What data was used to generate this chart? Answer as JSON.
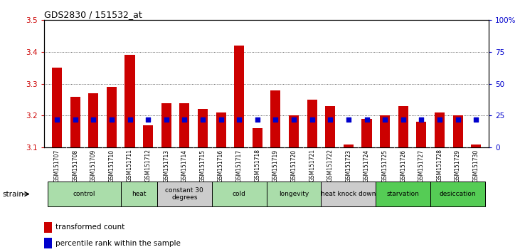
{
  "title": "GDS2830 / 151532_at",
  "samples": [
    "GSM151707",
    "GSM151708",
    "GSM151709",
    "GSM151710",
    "GSM151711",
    "GSM151712",
    "GSM151713",
    "GSM151714",
    "GSM151715",
    "GSM151716",
    "GSM151717",
    "GSM151718",
    "GSM151719",
    "GSM151720",
    "GSM151721",
    "GSM151722",
    "GSM151723",
    "GSM151724",
    "GSM151725",
    "GSM151726",
    "GSM151727",
    "GSM151728",
    "GSM151729",
    "GSM151730"
  ],
  "transformed_count": [
    3.35,
    3.26,
    3.27,
    3.29,
    3.39,
    3.17,
    3.24,
    3.24,
    3.22,
    3.21,
    3.42,
    3.16,
    3.28,
    3.2,
    3.25,
    3.23,
    3.11,
    3.19,
    3.2,
    3.23,
    3.18,
    3.21,
    3.2,
    3.11
  ],
  "percentile_rank": [
    22,
    22,
    22,
    22,
    22,
    22,
    22,
    22,
    22,
    22,
    22,
    22,
    22,
    22,
    22,
    22,
    22,
    22,
    22,
    22,
    22,
    22,
    22,
    22
  ],
  "groups": [
    {
      "label": "control",
      "start": 0,
      "end": 4,
      "color": "#aaddaa"
    },
    {
      "label": "heat",
      "start": 4,
      "end": 6,
      "color": "#aaddaa"
    },
    {
      "label": "constant 30\ndegrees",
      "start": 6,
      "end": 9,
      "color": "#cccccc"
    },
    {
      "label": "cold",
      "start": 9,
      "end": 12,
      "color": "#aaddaa"
    },
    {
      "label": "longevity",
      "start": 12,
      "end": 15,
      "color": "#aaddaa"
    },
    {
      "label": "heat knock down",
      "start": 15,
      "end": 18,
      "color": "#cccccc"
    },
    {
      "label": "starvation",
      "start": 18,
      "end": 21,
      "color": "#55cc55"
    },
    {
      "label": "desiccation",
      "start": 21,
      "end": 24,
      "color": "#55cc55"
    }
  ],
  "ylim_left": [
    3.1,
    3.5
  ],
  "ylim_right": [
    0,
    100
  ],
  "yticks_left": [
    3.1,
    3.2,
    3.3,
    3.4,
    3.5
  ],
  "yticks_right": [
    0,
    25,
    50,
    75,
    100
  ],
  "ytick_labels_right": [
    "0",
    "25",
    "50",
    "75",
    "100%"
  ],
  "bar_color": "#cc0000",
  "dot_color": "#0000cc",
  "bar_baseline": 3.1,
  "bar_width": 0.55,
  "dot_size": 18,
  "background_color": "#ffffff",
  "plot_bg_color": "#ffffff",
  "grid_color": "#333333",
  "strain_label": "strain",
  "tick_bg_color": "#cccccc"
}
